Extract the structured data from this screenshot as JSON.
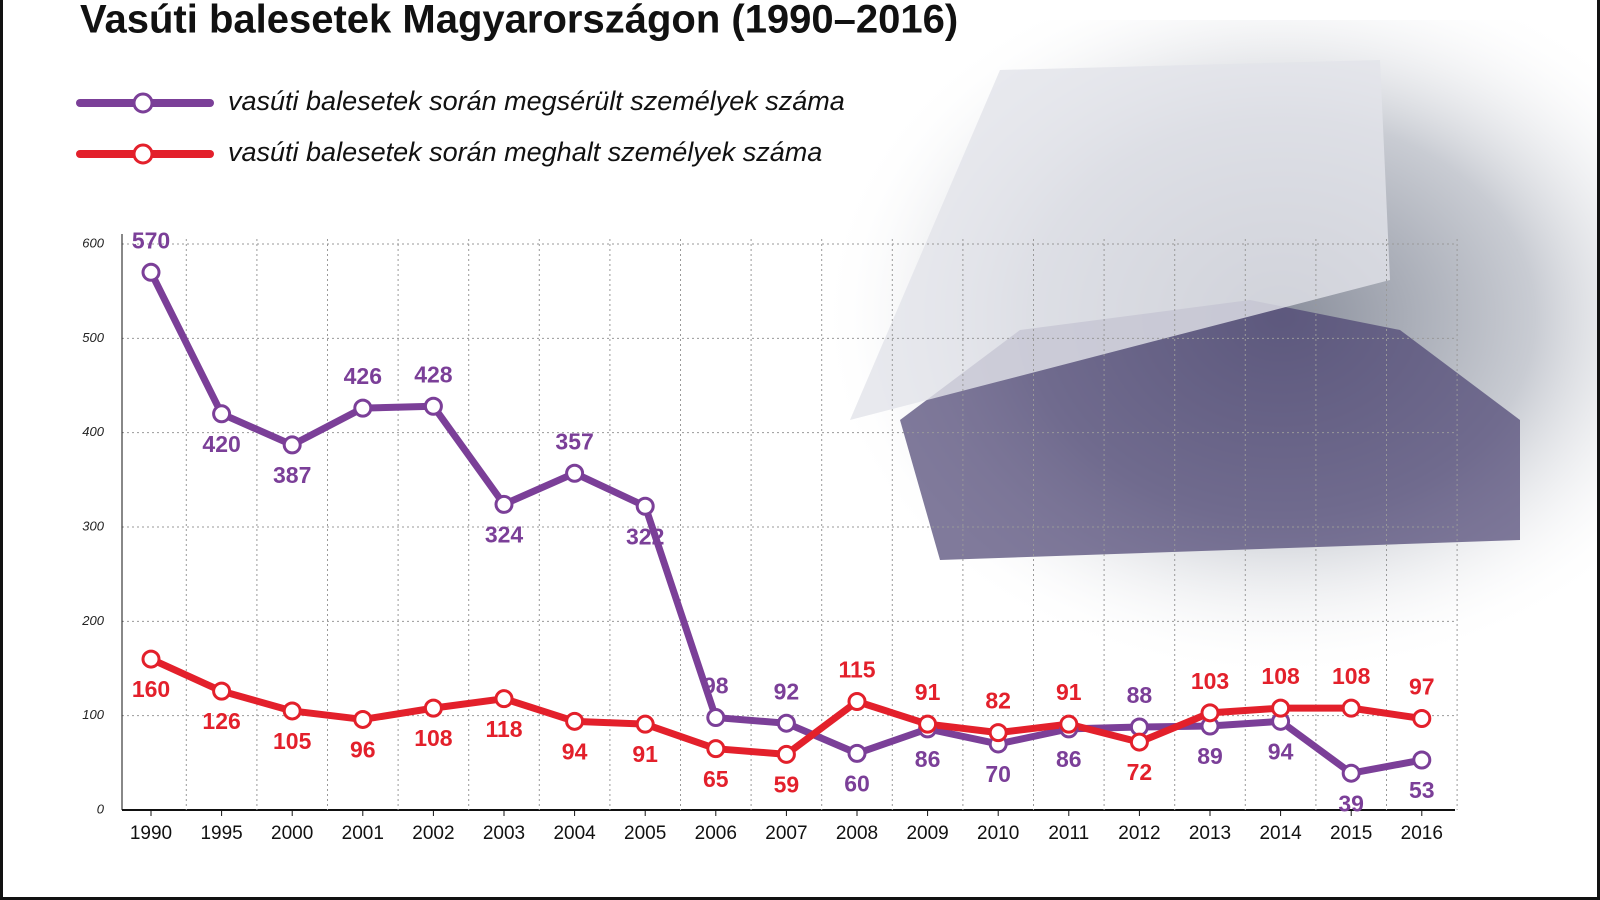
{
  "chart_data": {
    "type": "line",
    "title": "Vasúti balesetek Magyarországon (1990–2016)",
    "categories": [
      "1990",
      "1995",
      "2000",
      "2001",
      "2002",
      "2003",
      "2004",
      "2005",
      "2006",
      "2007",
      "2008",
      "2009",
      "2010",
      "2011",
      "2012",
      "2013",
      "2014",
      "2015",
      "2016"
    ],
    "series": [
      {
        "name": "vasúti balesetek során megsérült személyek száma",
        "color": "#7b3f98",
        "values": [
          570,
          420,
          387,
          426,
          428,
          324,
          357,
          322,
          98,
          92,
          60,
          86,
          70,
          86,
          88,
          89,
          94,
          39,
          53
        ]
      },
      {
        "name": "vasúti balesetek során meghalt személyek száma",
        "color": "#e3202b",
        "values": [
          160,
          126,
          105,
          96,
          108,
          118,
          94,
          91,
          65,
          59,
          115,
          91,
          82,
          91,
          72,
          103,
          108,
          108,
          97
        ]
      }
    ],
    "ylim": [
      0,
      600
    ],
    "yticks": [
      0,
      100,
      200,
      300,
      400,
      500,
      600
    ],
    "grid": true
  }
}
